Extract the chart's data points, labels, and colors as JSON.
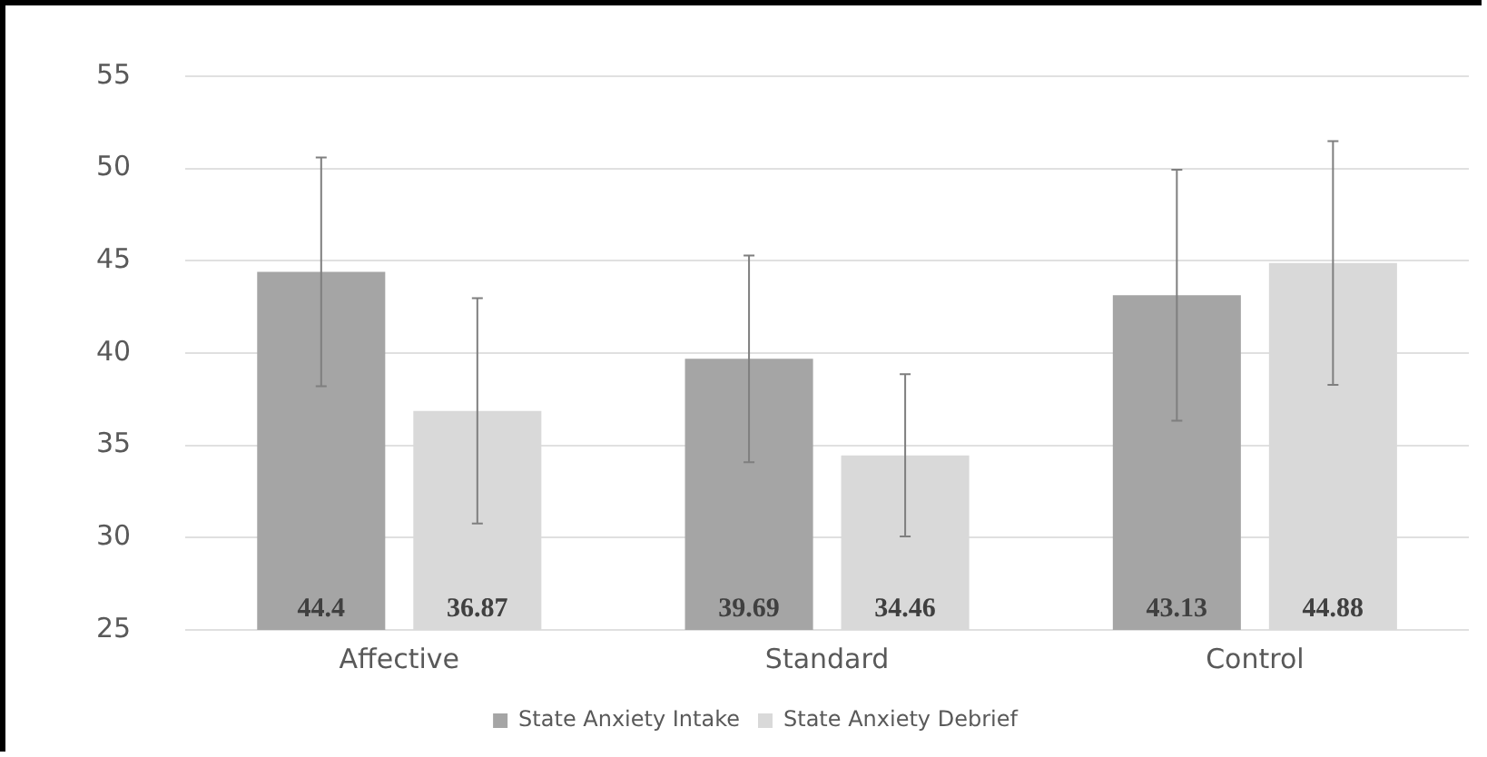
{
  "chart_data": {
    "type": "bar",
    "categories": [
      "Affective",
      "Standard",
      "Control"
    ],
    "series": [
      {
        "name": "State Anxiety Intake",
        "color": "#a5a5a5",
        "values": [
          44.4,
          39.69,
          43.13
        ],
        "errors": [
          6.2,
          5.6,
          6.8
        ]
      },
      {
        "name": "State Anxiety Debrief",
        "color": "#d9d9d9",
        "values": [
          36.87,
          34.46,
          44.88
        ],
        "errors": [
          6.1,
          4.4,
          6.6
        ]
      }
    ],
    "ylim": [
      25,
      55
    ],
    "yticks": [
      25,
      30,
      35,
      40,
      45,
      50,
      55
    ],
    "grid": "y",
    "legend": "bottom",
    "data_labels": true
  }
}
